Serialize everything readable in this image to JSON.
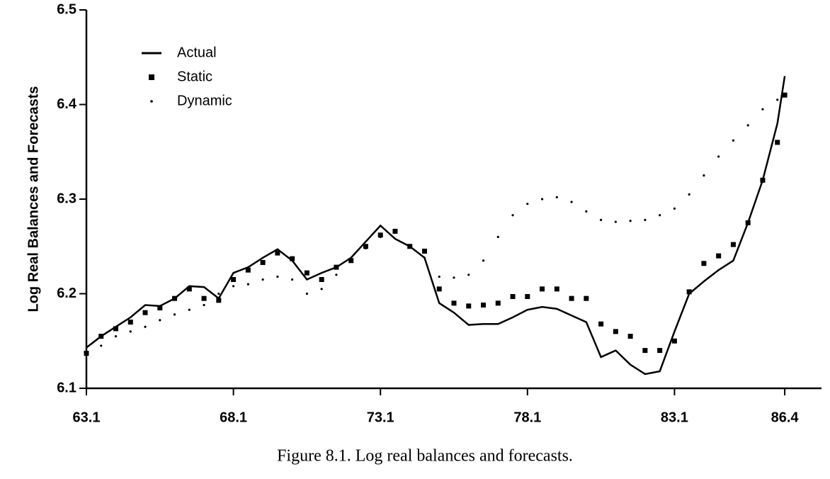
{
  "chart_data": {
    "type": "line",
    "caption": "Figure 8.1. Log real balances and forecasts.",
    "y_label": "Log Real Balances and Forecasts",
    "x": [
      63,
      63.5,
      64,
      64.5,
      65,
      65.5,
      66,
      66.5,
      67,
      67.5,
      68,
      68.5,
      69,
      69.5,
      70,
      70.5,
      71,
      71.5,
      72,
      72.5,
      73,
      73.5,
      74,
      74.5,
      75,
      75.5,
      76,
      76.5,
      77,
      77.5,
      78,
      78.5,
      79,
      79.5,
      80,
      80.5,
      81,
      81.5,
      82,
      82.5,
      83,
      83.5,
      84,
      84.5,
      85,
      85.5,
      86,
      86.5,
      86.75
    ],
    "series": [
      {
        "name": "Actual",
        "color": "#000000",
        "marker": "line",
        "values": [
          6.143,
          6.155,
          6.165,
          6.175,
          6.188,
          6.187,
          6.195,
          6.208,
          6.207,
          6.195,
          6.222,
          6.228,
          6.238,
          6.247,
          6.235,
          6.215,
          6.222,
          6.228,
          6.238,
          6.255,
          6.272,
          6.258,
          6.25,
          6.238,
          6.19,
          6.18,
          6.167,
          6.168,
          6.168,
          6.175,
          6.183,
          6.186,
          6.184,
          6.177,
          6.17,
          6.133,
          6.14,
          6.125,
          6.115,
          6.118,
          6.16,
          6.2,
          6.213,
          6.225,
          6.235,
          6.275,
          6.32,
          6.38,
          6.43
        ]
      },
      {
        "name": "Static",
        "color": "#000000",
        "marker": "square",
        "values": [
          6.137,
          6.155,
          6.163,
          6.17,
          6.18,
          6.185,
          6.195,
          6.205,
          6.195,
          6.193,
          6.215,
          6.225,
          6.233,
          6.243,
          6.237,
          6.222,
          6.215,
          6.228,
          6.235,
          6.25,
          6.262,
          6.266,
          6.25,
          6.245,
          6.205,
          6.19,
          6.187,
          6.188,
          6.19,
          6.197,
          6.197,
          6.205,
          6.205,
          6.195,
          6.195,
          6.168,
          6.16,
          6.155,
          6.14,
          6.14,
          6.15,
          6.202,
          6.232,
          6.24,
          6.252,
          6.275,
          6.32,
          6.36,
          6.41
        ]
      },
      {
        "name": "Dynamic",
        "color": "#000000",
        "marker": "dot",
        "values": [
          6.138,
          6.145,
          6.155,
          6.16,
          6.165,
          6.172,
          6.178,
          6.183,
          6.188,
          6.2,
          6.208,
          6.21,
          6.215,
          6.218,
          6.215,
          6.2,
          6.205,
          6.22,
          6.235,
          6.248,
          6.26,
          6.265,
          6.25,
          6.238,
          6.218,
          6.217,
          6.22,
          6.235,
          6.26,
          6.283,
          6.295,
          6.3,
          6.302,
          6.297,
          6.287,
          6.278,
          6.276,
          6.277,
          6.278,
          6.283,
          6.29,
          6.305,
          6.325,
          6.345,
          6.362,
          6.378,
          6.395,
          6.405,
          6.41
        ]
      }
    ],
    "xlim": [
      63,
      88
    ],
    "xticks": [
      {
        "value": 63,
        "label": "63.1"
      },
      {
        "value": 68,
        "label": "68.1"
      },
      {
        "value": 73,
        "label": "73.1"
      },
      {
        "value": 78,
        "label": "78.1"
      },
      {
        "value": 83,
        "label": "83.1"
      },
      {
        "value": 86.75,
        "label": "86.4"
      }
    ],
    "ylim": [
      6.1,
      6.5
    ],
    "yticks": [
      6.1,
      6.2,
      6.3,
      6.4,
      6.5
    ],
    "grid": false,
    "legend": "top-left"
  }
}
